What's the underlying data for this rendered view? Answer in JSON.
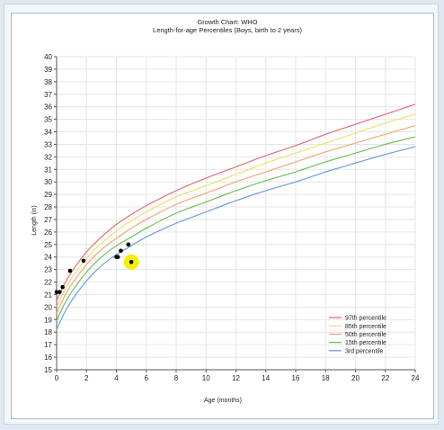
{
  "chart_data": {
    "type": "line",
    "title": "Growth Chart: WHO",
    "subtitle": "Length-for-age Percentiles (Boys, birth to 2 years)",
    "xlabel": "Age (months)",
    "ylabel": "Length (in)",
    "xlim": [
      0,
      24
    ],
    "ylim": [
      15,
      40
    ],
    "x_ticks": [
      "0",
      "2",
      "4",
      "6",
      "8",
      "10",
      "12",
      "14",
      "16",
      "18",
      "20",
      "22",
      "24"
    ],
    "y_ticks": [
      "15",
      "16",
      "17",
      "18",
      "19",
      "20",
      "21",
      "22",
      "23",
      "24",
      "25",
      "26",
      "27",
      "28",
      "29",
      "30",
      "31",
      "32",
      "33",
      "34",
      "35",
      "36",
      "37",
      "38",
      "39",
      "40"
    ],
    "grid": true,
    "legend_position": "bottom-right",
    "x": [
      0,
      0.5,
      1,
      2,
      3,
      4,
      5,
      6,
      8,
      10,
      12,
      14,
      16,
      18,
      20,
      22,
      24
    ],
    "series": [
      {
        "name": "97th percentile",
        "color": "#e0707a",
        "values": [
          20.5,
          21.8,
          22.8,
          24.4,
          25.6,
          26.6,
          27.4,
          28.1,
          29.3,
          30.3,
          31.2,
          32.1,
          32.9,
          33.8,
          34.6,
          35.4,
          36.2
        ]
      },
      {
        "name": "85th percentile",
        "color": "#f0e070",
        "values": [
          20.0,
          21.3,
          22.3,
          23.9,
          25.1,
          26.1,
          26.9,
          27.6,
          28.8,
          29.7,
          30.6,
          31.5,
          32.3,
          33.1,
          33.9,
          34.7,
          35.4
        ]
      },
      {
        "name": "50th percentile",
        "color": "#f4a87c",
        "values": [
          19.5,
          20.8,
          21.8,
          23.4,
          24.6,
          25.5,
          26.3,
          27.0,
          28.2,
          29.1,
          30.0,
          30.8,
          31.6,
          32.4,
          33.1,
          33.8,
          34.5
        ]
      },
      {
        "name": "15th percentile",
        "color": "#70c060",
        "values": [
          18.9,
          20.2,
          21.2,
          22.8,
          24.0,
          24.9,
          25.6,
          26.3,
          27.5,
          28.4,
          29.3,
          30.1,
          30.8,
          31.6,
          32.3,
          33.0,
          33.6
        ]
      },
      {
        "name": "3rd percentile",
        "color": "#6a9ee0",
        "values": [
          18.2,
          19.5,
          20.5,
          22.1,
          23.3,
          24.2,
          24.9,
          25.6,
          26.7,
          27.6,
          28.5,
          29.3,
          30.0,
          30.8,
          31.5,
          32.2,
          32.8
        ]
      }
    ],
    "points": [
      {
        "x": 0.0,
        "y": 21.2
      },
      {
        "x": 0.2,
        "y": 21.2
      },
      {
        "x": 0.4,
        "y": 21.6
      },
      {
        "x": 0.9,
        "y": 22.9
      },
      {
        "x": 1.8,
        "y": 23.7
      },
      {
        "x": 4.0,
        "y": 24.0
      },
      {
        "x": 4.1,
        "y": 24.0
      },
      {
        "x": 4.3,
        "y": 24.5
      },
      {
        "x": 4.8,
        "y": 25.0
      },
      {
        "x": 5.0,
        "y": 23.6
      }
    ],
    "highlight_point": {
      "x": 5.0,
      "y": 23.6,
      "color": "#f5f000"
    }
  }
}
